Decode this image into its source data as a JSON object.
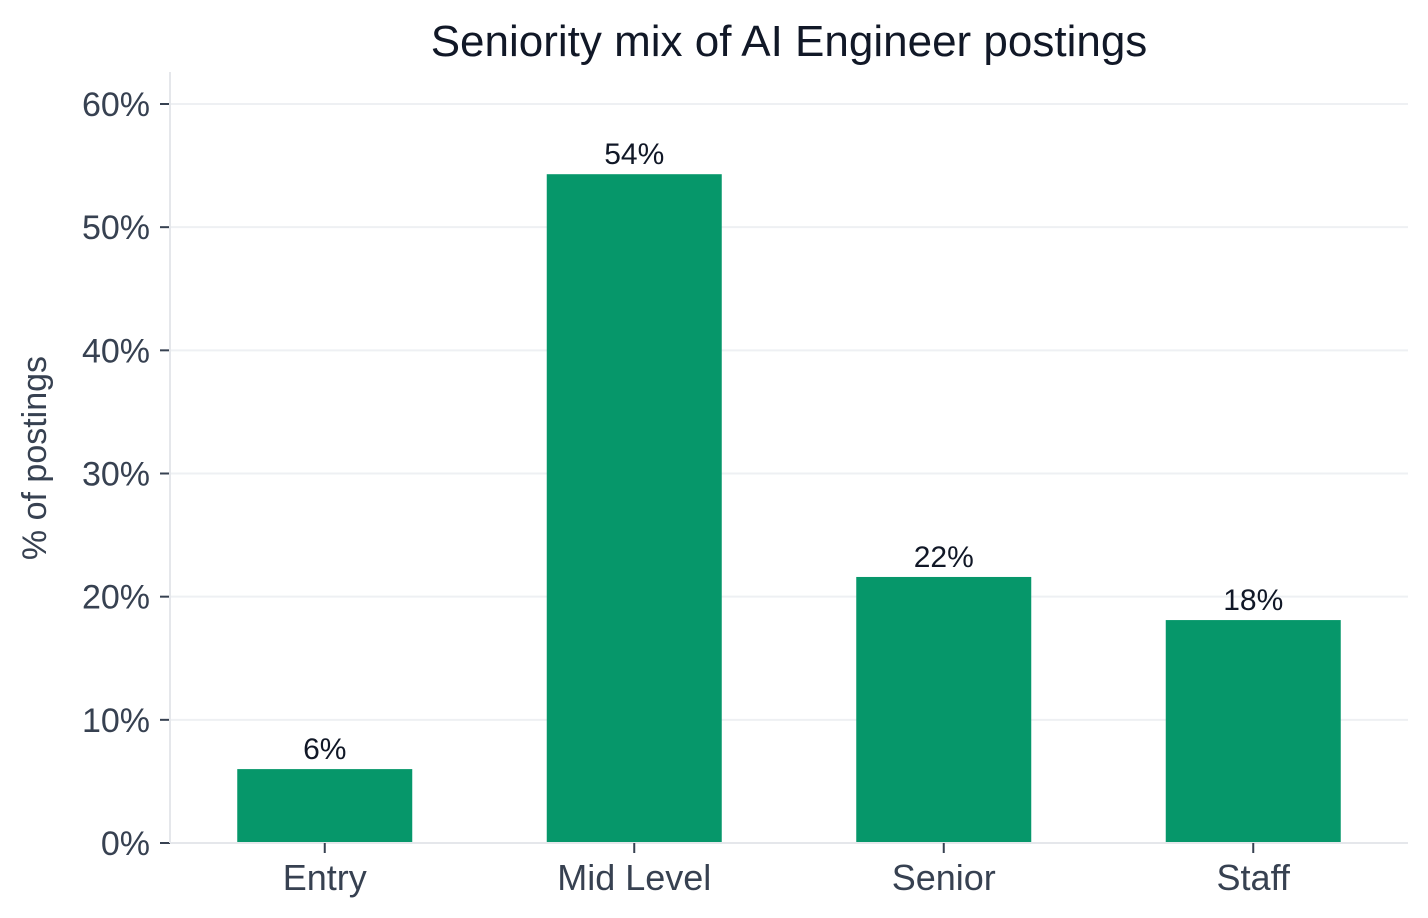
{
  "chart_data": {
    "type": "bar",
    "title": "Seniority mix of AI Engineer postings",
    "xlabel": "",
    "ylabel": "% of postings",
    "categories": [
      "Entry",
      "Mid Level",
      "Senior",
      "Staff"
    ],
    "values": [
      6,
      54.3,
      21.6,
      18.1
    ],
    "data_labels": [
      "6%",
      "54%",
      "22%",
      "18%"
    ],
    "ylim": [
      0,
      62.5
    ],
    "yticks": [
      0,
      10,
      20,
      30,
      40,
      50,
      60
    ],
    "ytick_labels": [
      "0%",
      "10%",
      "20%",
      "30%",
      "40%",
      "50%",
      "60%"
    ],
    "grid": "horizontal",
    "legend": "none",
    "bar_color": "#06976a"
  }
}
